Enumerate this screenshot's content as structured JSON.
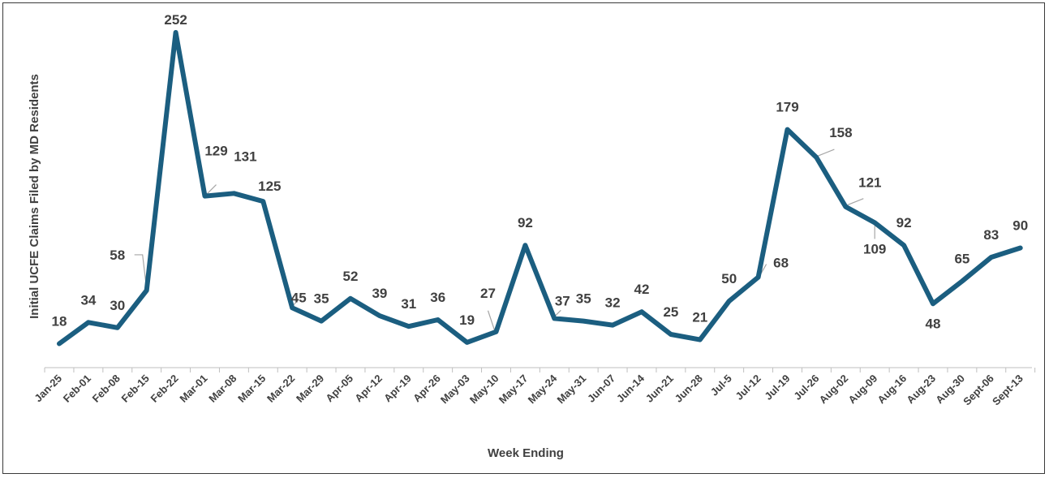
{
  "chart_data": {
    "type": "line",
    "title": "",
    "xlabel": "Week Ending",
    "ylabel": "Initial UCFE Claims Filed by MD Residents",
    "ylim": [
      0,
      260
    ],
    "grid": false,
    "legend": "none",
    "categories": [
      "Jan-25",
      "Feb-01",
      "Feb-08",
      "Feb-15",
      "Feb-22",
      "Mar-01",
      "Mar-08",
      "Mar-15",
      "Mar-22",
      "Mar-29",
      "Apr-05",
      "Apr-12",
      "Apr-19",
      "Apr-26",
      "May-03",
      "May-10",
      "May-17",
      "May-24",
      "May-31",
      "Jun-07",
      "Jun-14",
      "Jun-21",
      "Jun-28",
      "Jul-5",
      "Jul-12",
      "Jul-19",
      "Jul-26",
      "Aug-02",
      "Aug-09",
      "Aug-16",
      "Aug-23",
      "Aug-30",
      "Sept-06",
      "Sept-13"
    ],
    "series": [
      {
        "values": [
          18,
          34,
          30,
          58,
          252,
          129,
          131,
          125,
          45,
          35,
          52,
          39,
          31,
          36,
          19,
          27,
          92,
          37,
          35,
          32,
          42,
          25,
          21,
          50,
          68,
          179,
          158,
          121,
          109,
          92,
          48,
          65,
          83,
          90
        ],
        "color": "#1b5e80"
      }
    ]
  }
}
